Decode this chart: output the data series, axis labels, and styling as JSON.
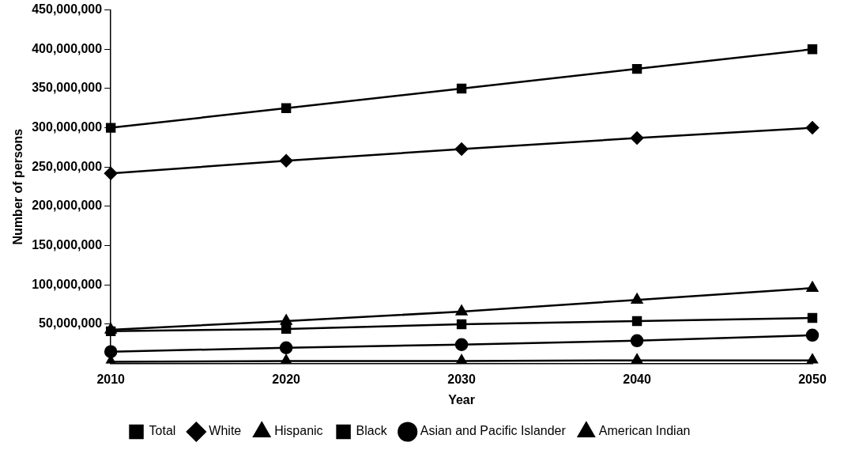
{
  "chart_data": {
    "type": "line",
    "xlabel": "Year",
    "ylabel": "Number of persons",
    "categories": [
      "2010",
      "2020",
      "2030",
      "2040",
      "2050"
    ],
    "ylim": [
      0,
      450000000
    ],
    "yticks": [
      {
        "value": 50000000,
        "label": "50,000,000"
      },
      {
        "value": 100000000,
        "label": "100,000,000"
      },
      {
        "value": 150000000,
        "label": "150,000,000"
      },
      {
        "value": 200000000,
        "label": "200,000,000"
      },
      {
        "value": 250000000,
        "label": "250,000,000"
      },
      {
        "value": 300000000,
        "label": "300,000,000"
      },
      {
        "value": 350000000,
        "label": "350,000,000"
      },
      {
        "value": 400000000,
        "label": "400,000,000"
      },
      {
        "value": 450000000,
        "label": "450,000,000"
      }
    ],
    "grid": false,
    "legend": "bottom",
    "line_style": "solid",
    "series": [
      {
        "name": "Total",
        "color": "#000000",
        "marker": "square",
        "values": [
          300000000,
          325000000,
          350000000,
          375000000,
          400000000
        ]
      },
      {
        "name": "White",
        "color": "#000000",
        "marker": "diamond",
        "values": [
          242000000,
          258000000,
          273000000,
          287000000,
          300000000
        ]
      },
      {
        "name": "Hispanic",
        "color": "#000000",
        "marker": "triangle",
        "values": [
          43000000,
          54000000,
          66000000,
          81000000,
          96000000
        ]
      },
      {
        "name": "Black",
        "color": "#000000",
        "marker": "square",
        "values": [
          41000000,
          44000000,
          50000000,
          54000000,
          58000000
        ]
      },
      {
        "name": "Asian and Pacific Islander",
        "color": "#000000",
        "marker": "circle",
        "values": [
          15000000,
          20000000,
          24000000,
          29000000,
          36000000
        ]
      },
      {
        "name": "American Indian",
        "color": "#000000",
        "marker": "triangle",
        "values": [
          2000000,
          3000000,
          3000000,
          4000000,
          4000000
        ]
      }
    ]
  }
}
